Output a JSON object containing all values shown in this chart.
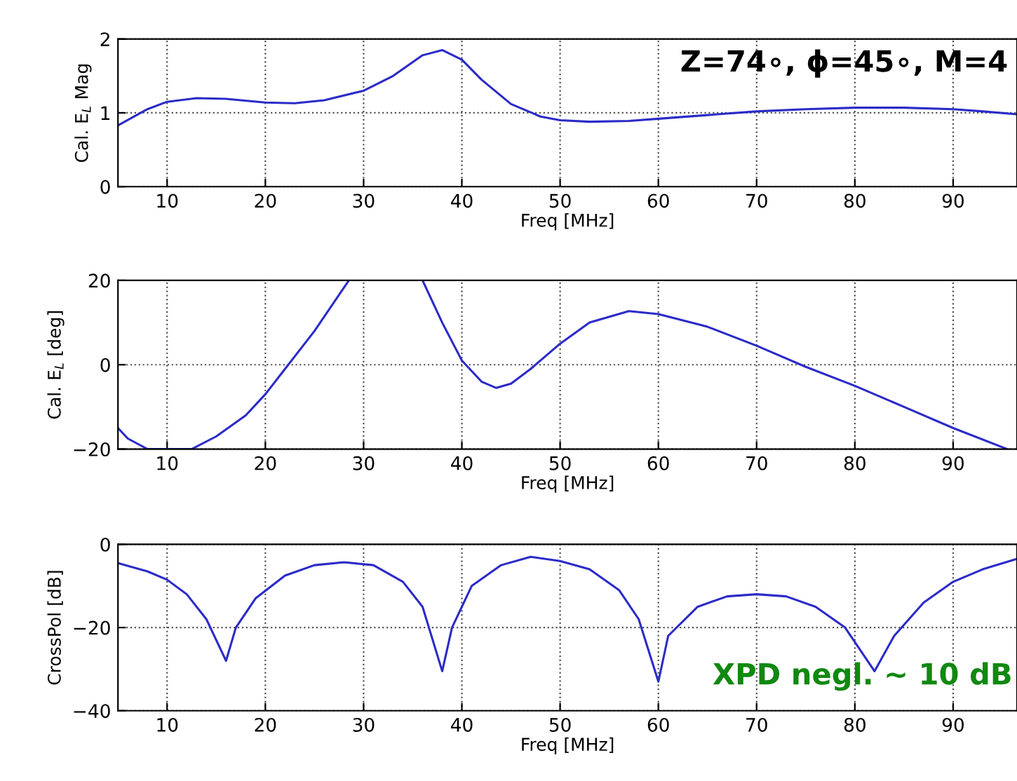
{
  "chart_data": [
    {
      "type": "line",
      "xlabel": "Freq [MHz]",
      "ylabel": "Cal. E$_{L}$ Mag",
      "annotations": [
        "Z=74∘, ϕ=45∘, M=4"
      ],
      "xlim": [
        5,
        96.5
      ],
      "xticks": [
        10,
        20,
        30,
        40,
        50,
        60,
        70,
        80,
        90
      ],
      "ylim": [
        0,
        2
      ],
      "yticks": [
        0,
        1,
        2
      ],
      "grid": true,
      "legend": false,
      "series": [
        {
          "color": "#2b2bc8",
          "x": [
            5,
            8,
            10,
            13,
            16,
            20,
            23,
            26,
            30,
            33,
            36,
            38,
            40,
            42,
            45,
            48,
            50,
            53,
            57,
            60,
            65,
            70,
            75,
            80,
            85,
            90,
            93,
            96.5
          ],
          "values": [
            0.83,
            1.05,
            1.15,
            1.2,
            1.19,
            1.14,
            1.13,
            1.17,
            1.3,
            1.5,
            1.78,
            1.85,
            1.72,
            1.45,
            1.12,
            0.95,
            0.9,
            0.88,
            0.89,
            0.92,
            0.97,
            1.02,
            1.05,
            1.07,
            1.07,
            1.05,
            1.02,
            0.98
          ]
        }
      ]
    },
    {
      "type": "line",
      "xlabel": "Freq [MHz]",
      "ylabel": "Cal. E$_{L}$ [deg]",
      "xlim": [
        5,
        96.5
      ],
      "xticks": [
        10,
        20,
        30,
        40,
        50,
        60,
        70,
        80,
        90
      ],
      "ylim": [
        -20,
        20
      ],
      "yticks": [
        -20,
        0,
        20
      ],
      "grid": true,
      "legend": false,
      "series": [
        {
          "color": "#2b2bc8",
          "x": [
            5,
            6,
            8,
            12.5,
            15,
            18,
            20,
            22,
            25,
            28.5,
            32,
            36,
            38,
            40,
            42,
            43.5,
            45,
            47,
            50,
            53,
            57,
            60,
            65,
            70,
            75,
            80,
            85,
            90,
            95.5
          ],
          "values": [
            -15,
            -17.5,
            -20,
            -20,
            -17,
            -12,
            -7,
            -1,
            8,
            20,
            null,
            20,
            10,
            1,
            -4,
            -5.5,
            -4.5,
            -1,
            5,
            10,
            12.7,
            12,
            9,
            4.5,
            -0.5,
            -5,
            -10,
            -15,
            -20
          ]
        }
      ]
    },
    {
      "type": "line",
      "xlabel": "Freq [MHz]",
      "ylabel": "CrossPol [dB]",
      "annotations": [
        "XPD negl. ~ 10 dB"
      ],
      "xlim": [
        5,
        96.5
      ],
      "xticks": [
        10,
        20,
        30,
        40,
        50,
        60,
        70,
        80,
        90
      ],
      "ylim": [
        -40,
        0
      ],
      "yticks": [
        -40,
        -20,
        0
      ],
      "grid": true,
      "legend": false,
      "series": [
        {
          "color": "#2b2bc8",
          "x": [
            5,
            8,
            10,
            12,
            14,
            16,
            17,
            19,
            22,
            25,
            28,
            31,
            34,
            36,
            38,
            39,
            41,
            44,
            47,
            50,
            53,
            56,
            58,
            60,
            61,
            64,
            67,
            70,
            73,
            76,
            79,
            82,
            84,
            87,
            90,
            93,
            96.5
          ],
          "values": [
            -4.5,
            -6.5,
            -8.5,
            -12,
            -18,
            -28,
            -20,
            -13,
            -7.5,
            -5,
            -4.3,
            -5,
            -9,
            -15,
            -30.5,
            -20,
            -10,
            -5,
            -3,
            -4,
            -6,
            -11,
            -18,
            -33,
            -22,
            -15,
            -12.5,
            -12,
            -12.5,
            -15,
            -20,
            -30.5,
            -22,
            -14,
            -9,
            -6,
            -3.5
          ]
        }
      ]
    }
  ]
}
